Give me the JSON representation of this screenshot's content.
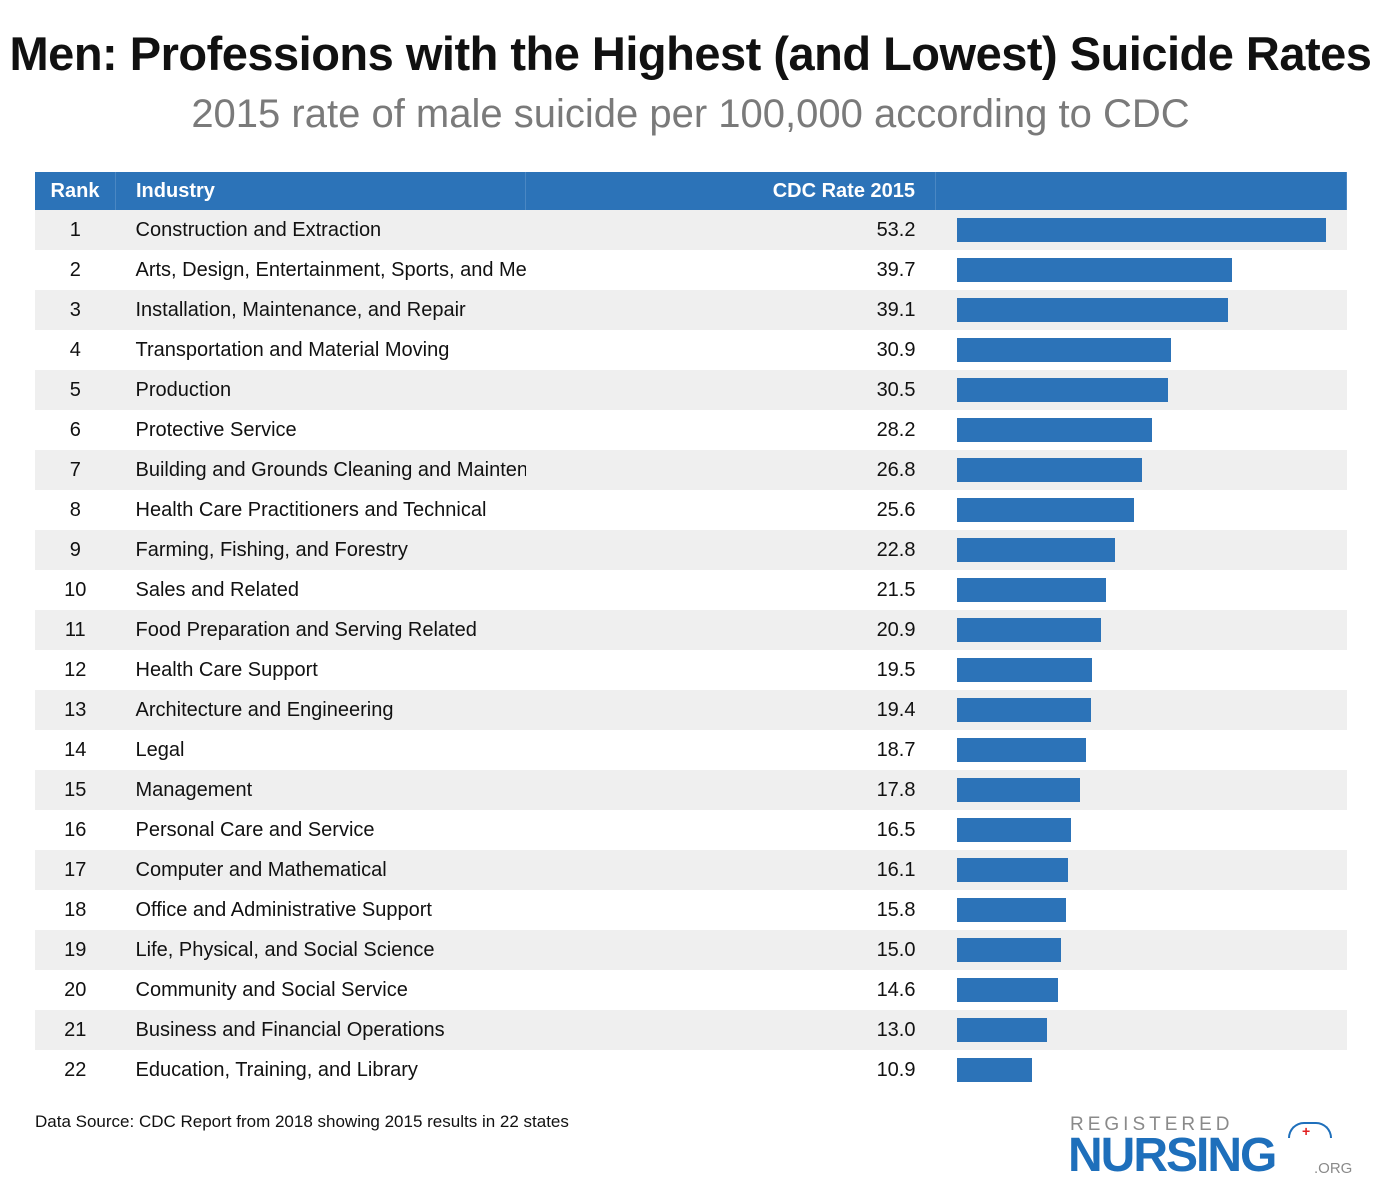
{
  "chart_data": {
    "type": "bar",
    "orientation": "horizontal",
    "title": "Men: Professions with the Highest (and Lowest) Suicide Rates",
    "subtitle": "2015 rate of male suicide per 100,000 according to CDC",
    "columns": [
      "Rank",
      "Industry",
      "CDC Rate 2015",
      ""
    ],
    "bar_color": "#2c73b8",
    "header_color": "#2c73b8",
    "xlim": [
      0,
      53.2
    ],
    "rows": [
      {
        "rank": "1",
        "industry": "Construction and Extraction",
        "rate": "53.2",
        "value": 53.2
      },
      {
        "rank": "2",
        "industry": "Arts, Design, Entertainment, Sports, and Med",
        "rate": "39.7",
        "value": 39.7
      },
      {
        "rank": "3",
        "industry": "Installation, Maintenance, and Repair",
        "rate": "39.1",
        "value": 39.1
      },
      {
        "rank": "4",
        "industry": "Transportation and Material Moving",
        "rate": "30.9",
        "value": 30.9
      },
      {
        "rank": "5",
        "industry": "Production",
        "rate": "30.5",
        "value": 30.5
      },
      {
        "rank": "6",
        "industry": "Protective Service",
        "rate": "28.2",
        "value": 28.2
      },
      {
        "rank": "7",
        "industry": "Building and Grounds Cleaning and Maintena",
        "rate": "26.8",
        "value": 26.8
      },
      {
        "rank": "8",
        "industry": "Health Care Practitioners and Technical",
        "rate": "25.6",
        "value": 25.6
      },
      {
        "rank": "9",
        "industry": "Farming, Fishing, and Forestry",
        "rate": "22.8",
        "value": 22.8
      },
      {
        "rank": "10",
        "industry": "Sales and Related",
        "rate": "21.5",
        "value": 21.5
      },
      {
        "rank": "11",
        "industry": "Food Preparation and Serving Related",
        "rate": "20.9",
        "value": 20.9
      },
      {
        "rank": "12",
        "industry": "Health Care Support",
        "rate": "19.5",
        "value": 19.5
      },
      {
        "rank": "13",
        "industry": "Architecture and Engineering",
        "rate": "19.4",
        "value": 19.4
      },
      {
        "rank": "14",
        "industry": "Legal",
        "rate": "18.7",
        "value": 18.7
      },
      {
        "rank": "15",
        "industry": "Management",
        "rate": "17.8",
        "value": 17.8
      },
      {
        "rank": "16",
        "industry": "Personal Care and Service",
        "rate": "16.5",
        "value": 16.5
      },
      {
        "rank": "17",
        "industry": "Computer and Mathematical",
        "rate": "16.1",
        "value": 16.1
      },
      {
        "rank": "18",
        "industry": "Office and Administrative Support",
        "rate": "15.8",
        "value": 15.8
      },
      {
        "rank": "19",
        "industry": "Life, Physical, and Social Science",
        "rate": "15.0",
        "value": 15.0
      },
      {
        "rank": "20",
        "industry": "Community and Social Service",
        "rate": "14.6",
        "value": 14.6
      },
      {
        "rank": "21",
        "industry": "Business and Financial Operations",
        "rate": "13.0",
        "value": 13.0
      },
      {
        "rank": "22",
        "industry": "Education, Training, and Library",
        "rate": "10.9",
        "value": 10.9
      }
    ],
    "source": "Data Source: CDC Report from 2018 showing 2015 results in 22 states"
  },
  "logo": {
    "line1": "REGISTERED",
    "line2": "NURSING",
    "suffix": ".ORG"
  }
}
